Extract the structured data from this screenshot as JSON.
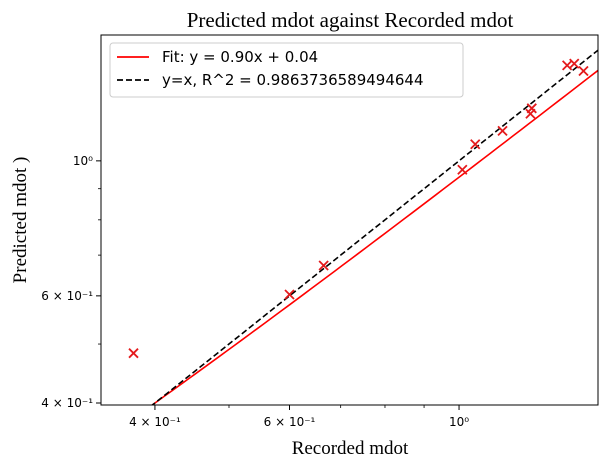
{
  "chart_data": {
    "type": "scatter",
    "title": "Predicted mdot against Recorded mdot",
    "xlabel": "Recorded mdot",
    "ylabel": "Predicted mdot )",
    "xscale": "log",
    "yscale": "log",
    "xlim": [
      0.34,
      1.52
    ],
    "ylim": [
      0.397,
      1.61
    ],
    "xticks": [
      {
        "value": 0.4,
        "label": "4 × 10⁻¹"
      },
      {
        "value": 0.6,
        "label": "6 × 10⁻¹"
      },
      {
        "value": 1.0,
        "label": "10⁰"
      }
    ],
    "yticks": [
      {
        "value": 0.4,
        "label": "4 × 10⁻¹"
      },
      {
        "value": 0.6,
        "label": "6 × 10⁻¹"
      },
      {
        "value": 1.0,
        "label": "10⁰"
      }
    ],
    "xminor": [
      0.5,
      0.7,
      0.8,
      0.9
    ],
    "yminor": [
      0.5,
      0.7,
      0.8,
      0.9
    ],
    "grid": false,
    "legend_position": "top-left",
    "series": [
      {
        "kind": "scatter",
        "marker": "x",
        "color": "#e41a1c",
        "points": [
          [
            0.375,
            0.483
          ],
          [
            0.6,
            0.603
          ],
          [
            0.665,
            0.673
          ],
          [
            1.01,
            0.967
          ],
          [
            1.05,
            1.065
          ],
          [
            1.14,
            1.12
          ],
          [
            1.24,
            1.195
          ],
          [
            1.245,
            1.22
          ],
          [
            1.385,
            1.435
          ],
          [
            1.415,
            1.445
          ],
          [
            1.455,
            1.405
          ]
        ]
      },
      {
        "kind": "line",
        "name": "Fit: y = 0.90x + 0.04",
        "color": "#ff0000",
        "dash": "solid",
        "slope": 0.9,
        "intercept": 0.04,
        "x_range": [
          0.375,
          1.52
        ]
      },
      {
        "kind": "line",
        "name": "y=x, R^2 = 0.9863736589494644",
        "color": "#000000",
        "dash": "dashed",
        "slope": 1.0,
        "intercept": 0.0,
        "x_range": [
          0.34,
          1.52
        ]
      }
    ]
  }
}
